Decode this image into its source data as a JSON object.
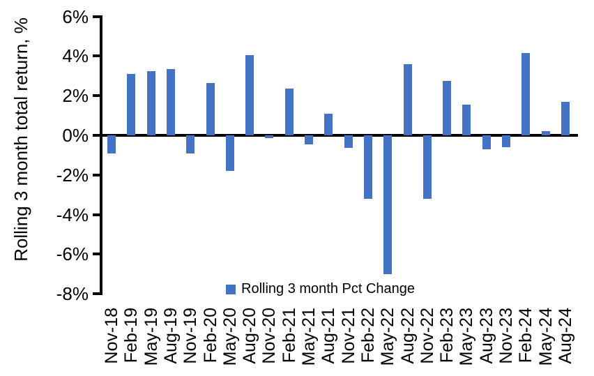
{
  "chart_data": {
    "type": "bar",
    "title": "",
    "xlabel": "",
    "ylabel": "Rolling 3 month total return, %",
    "legend": "Rolling 3 month Pct Change",
    "legend_position": "bottom-center",
    "grid": false,
    "bar_color": "#4472C4",
    "axis_color": "#000000",
    "ylim": [
      -8,
      6
    ],
    "y_ticks": [
      {
        "label": "6%",
        "value": 6
      },
      {
        "label": "4%",
        "value": 4
      },
      {
        "label": "2%",
        "value": 2
      },
      {
        "label": "0%",
        "value": 0
      },
      {
        "label": "-2%",
        "value": -2
      },
      {
        "label": "-4%",
        "value": -4
      },
      {
        "label": "-6%",
        "value": -6
      },
      {
        "label": "-8%",
        "value": -8
      }
    ],
    "categories": [
      "Nov-18",
      "Feb-19",
      "May-19",
      "Aug-19",
      "Nov-19",
      "Feb-20",
      "May-20",
      "Aug-20",
      "Nov-20",
      "Feb-21",
      "May-21",
      "Aug-21",
      "Nov-21",
      "Feb-22",
      "May-22",
      "Aug-22",
      "Nov-22",
      "Feb-23",
      "May-23",
      "Aug-23",
      "Nov-23",
      "Feb-24",
      "May-24",
      "Aug-24"
    ],
    "series": [
      {
        "name": "Rolling 3 month Pct Change",
        "values": [
          -0.9,
          3.1,
          3.25,
          3.35,
          -0.9,
          2.65,
          -1.8,
          4.05,
          -0.15,
          2.35,
          -0.45,
          1.1,
          -0.65,
          -3.2,
          -7.0,
          3.6,
          -3.2,
          2.75,
          1.55,
          -0.7,
          -0.6,
          4.15,
          0.2,
          1.7
        ]
      }
    ]
  }
}
